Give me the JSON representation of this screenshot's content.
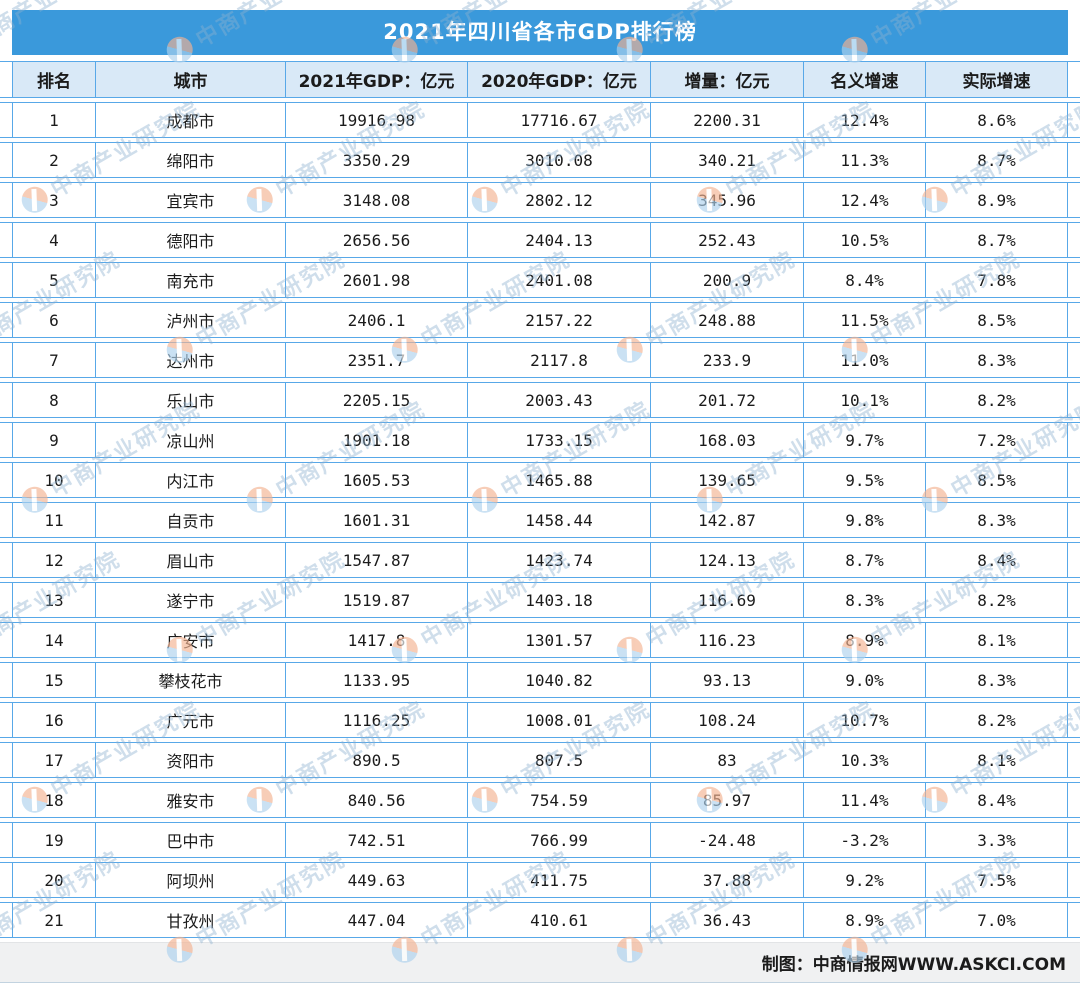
{
  "title": "2021年四川省各市GDP排行榜",
  "table": {
    "headers": [
      "排名",
      "城市",
      "2021年GDP：亿元",
      "2020年GDP：亿元",
      "增量：亿元",
      "名义增速",
      "实际增速"
    ],
    "column_keys": [
      "rank",
      "city",
      "gdp-2021",
      "gdp-2020",
      "increment",
      "nominal-growth",
      "real-growth"
    ],
    "rows": [
      [
        "1",
        "成都市",
        "19916.98",
        "17716.67",
        "2200.31",
        "12.4%",
        "8.6%"
      ],
      [
        "2",
        "绵阳市",
        "3350.29",
        "3010.08",
        "340.21",
        "11.3%",
        "8.7%"
      ],
      [
        "3",
        "宜宾市",
        "3148.08",
        "2802.12",
        "345.96",
        "12.4%",
        "8.9%"
      ],
      [
        "4",
        "德阳市",
        "2656.56",
        "2404.13",
        "252.43",
        "10.5%",
        "8.7%"
      ],
      [
        "5",
        "南充市",
        "2601.98",
        "2401.08",
        "200.9",
        "8.4%",
        "7.8%"
      ],
      [
        "6",
        "泸州市",
        "2406.1",
        "2157.22",
        "248.88",
        "11.5%",
        "8.5%"
      ],
      [
        "7",
        "达州市",
        "2351.7",
        "2117.8",
        "233.9",
        "11.0%",
        "8.3%"
      ],
      [
        "8",
        "乐山市",
        "2205.15",
        "2003.43",
        "201.72",
        "10.1%",
        "8.2%"
      ],
      [
        "9",
        "凉山州",
        "1901.18",
        "1733.15",
        "168.03",
        "9.7%",
        "7.2%"
      ],
      [
        "10",
        "内江市",
        "1605.53",
        "1465.88",
        "139.65",
        "9.5%",
        "8.5%"
      ],
      [
        "11",
        "自贡市",
        "1601.31",
        "1458.44",
        "142.87",
        "9.8%",
        "8.3%"
      ],
      [
        "12",
        "眉山市",
        "1547.87",
        "1423.74",
        "124.13",
        "8.7%",
        "8.4%"
      ],
      [
        "13",
        "遂宁市",
        "1519.87",
        "1403.18",
        "116.69",
        "8.3%",
        "8.2%"
      ],
      [
        "14",
        "广安市",
        "1417.8",
        "1301.57",
        "116.23",
        "8.9%",
        "8.1%"
      ],
      [
        "15",
        "攀枝花市",
        "1133.95",
        "1040.82",
        "93.13",
        "9.0%",
        "8.3%"
      ],
      [
        "16",
        "广元市",
        "1116.25",
        "1008.01",
        "108.24",
        "10.7%",
        "8.2%"
      ],
      [
        "17",
        "资阳市",
        "890.5",
        "807.5",
        "83",
        "10.3%",
        "8.1%"
      ],
      [
        "18",
        "雅安市",
        "840.56",
        "754.59",
        "85.97",
        "11.4%",
        "8.4%"
      ],
      [
        "19",
        "巴中市",
        "742.51",
        "766.99",
        "-24.48",
        "-3.2%",
        "3.3%"
      ],
      [
        "20",
        "阿坝州",
        "449.63",
        "411.75",
        "37.88",
        "9.2%",
        "7.5%"
      ],
      [
        "21",
        "甘孜州",
        "447.04",
        "410.61",
        "36.43",
        "8.9%",
        "7.0%"
      ]
    ]
  },
  "footer": {
    "credit": "制图：中商情报网WWW.ASKCI.COM"
  },
  "watermark": {
    "text": "中商产业研究院"
  },
  "colors": {
    "title_bar": "#3a99db",
    "header_bg": "#d9e9f7",
    "border": "#58a8e8",
    "footer_bg": "#f0f1f2",
    "watermark_text": "#8cb0d0",
    "logo_orange": "#f4b392",
    "logo_blue": "#aed2ee"
  },
  "chart_data": {
    "type": "table",
    "title": "2021年四川省各市GDP排行榜",
    "columns": [
      "排名",
      "城市",
      "2021年GDP：亿元",
      "2020年GDP：亿元",
      "增量：亿元",
      "名义增速",
      "实际增速"
    ],
    "rows": [
      [
        1,
        "成都市",
        19916.98,
        17716.67,
        2200.31,
        "12.4%",
        "8.6%"
      ],
      [
        2,
        "绵阳市",
        3350.29,
        3010.08,
        340.21,
        "11.3%",
        "8.7%"
      ],
      [
        3,
        "宜宾市",
        3148.08,
        2802.12,
        345.96,
        "12.4%",
        "8.9%"
      ],
      [
        4,
        "德阳市",
        2656.56,
        2404.13,
        252.43,
        "10.5%",
        "8.7%"
      ],
      [
        5,
        "南充市",
        2601.98,
        2401.08,
        200.9,
        "8.4%",
        "7.8%"
      ],
      [
        6,
        "泸州市",
        2406.1,
        2157.22,
        248.88,
        "11.5%",
        "8.5%"
      ],
      [
        7,
        "达州市",
        2351.7,
        2117.8,
        233.9,
        "11.0%",
        "8.3%"
      ],
      [
        8,
        "乐山市",
        2205.15,
        2003.43,
        201.72,
        "10.1%",
        "8.2%"
      ],
      [
        9,
        "凉山州",
        1901.18,
        1733.15,
        168.03,
        "9.7%",
        "7.2%"
      ],
      [
        10,
        "内江市",
        1605.53,
        1465.88,
        139.65,
        "9.5%",
        "8.5%"
      ],
      [
        11,
        "自贡市",
        1601.31,
        1458.44,
        142.87,
        "9.8%",
        "8.3%"
      ],
      [
        12,
        "眉山市",
        1547.87,
        1423.74,
        124.13,
        "8.7%",
        "8.4%"
      ],
      [
        13,
        "遂宁市",
        1519.87,
        1403.18,
        116.69,
        "8.3%",
        "8.2%"
      ],
      [
        14,
        "广安市",
        1417.8,
        1301.57,
        116.23,
        "8.9%",
        "8.1%"
      ],
      [
        15,
        "攀枝花市",
        1133.95,
        1040.82,
        93.13,
        "9.0%",
        "8.3%"
      ],
      [
        16,
        "广元市",
        1116.25,
        1008.01,
        108.24,
        "10.7%",
        "8.2%"
      ],
      [
        17,
        "资阳市",
        890.5,
        807.5,
        83,
        "10.3%",
        "8.1%"
      ],
      [
        18,
        "雅安市",
        840.56,
        754.59,
        85.97,
        "11.4%",
        "8.4%"
      ],
      [
        19,
        "巴中市",
        742.51,
        766.99,
        -24.48,
        "-3.2%",
        "3.3%"
      ],
      [
        20,
        "阿坝州",
        449.63,
        411.75,
        37.88,
        "9.2%",
        "7.5%"
      ],
      [
        21,
        "甘孜州",
        447.04,
        410.61,
        36.43,
        "8.9%",
        "7.0%"
      ]
    ]
  }
}
